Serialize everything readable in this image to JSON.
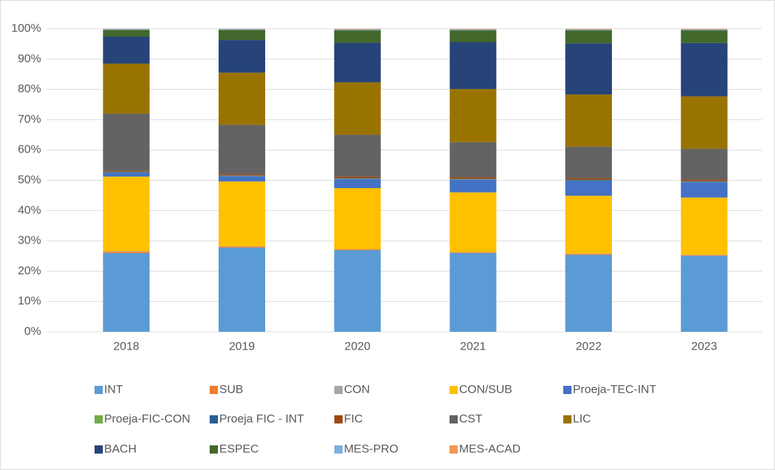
{
  "chart_data": {
    "type": "stacked_bar",
    "categories": [
      "2018",
      "2019",
      "2020",
      "2021",
      "2022",
      "2023"
    ],
    "ylim": [
      0,
      100
    ],
    "yticks": [
      {
        "value": 0,
        "label": "0%"
      },
      {
        "value": 10,
        "label": "10%"
      },
      {
        "value": 20,
        "label": "20%"
      },
      {
        "value": 30,
        "label": "30%"
      },
      {
        "value": 40,
        "label": "40%"
      },
      {
        "value": 50,
        "label": "50%"
      },
      {
        "value": 60,
        "label": "60%"
      },
      {
        "value": 70,
        "label": "70%"
      },
      {
        "value": 80,
        "label": "80%"
      },
      {
        "value": 90,
        "label": "90%"
      },
      {
        "value": 100,
        "label": "100%"
      }
    ],
    "grid": true,
    "legend": "bottom",
    "series": [
      {
        "name": "INT",
        "color": "#5b9bd5",
        "values": [
          26.0,
          27.8,
          26.9,
          26.0,
          25.4,
          25.1
        ]
      },
      {
        "name": "SUB",
        "color": "#ed7d31",
        "values": [
          0.5,
          0.3,
          0.3,
          0.2,
          0.3,
          0.2
        ]
      },
      {
        "name": "CON",
        "color": "#a5a5a5",
        "values": [
          0.1,
          0.1,
          0.1,
          0.1,
          0.1,
          0.1
        ]
      },
      {
        "name": "CON/SUB",
        "color": "#ffc000",
        "values": [
          24.6,
          21.4,
          20.1,
          19.7,
          19.1,
          18.9
        ]
      },
      {
        "name": "Proeja-TEC-INT",
        "color": "#4472c4",
        "values": [
          1.4,
          1.8,
          3.0,
          4.2,
          5.0,
          5.1
        ]
      },
      {
        "name": "Proeja-FIC-CON",
        "color": "#70ad47",
        "values": [
          0.1,
          0.1,
          0.1,
          0.1,
          0.1,
          0.1
        ]
      },
      {
        "name": "Proeja FIC - INT",
        "color": "#255e91",
        "values": [
          0.1,
          0.1,
          0.2,
          0.2,
          0.2,
          0.2
        ]
      },
      {
        "name": "FIC",
        "color": "#9e480e",
        "values": [
          0.3,
          0.4,
          0.5,
          0.5,
          0.5,
          0.5
        ]
      },
      {
        "name": "CST",
        "color": "#636363",
        "values": [
          18.9,
          16.3,
          13.8,
          11.6,
          10.4,
          10.2
        ]
      },
      {
        "name": "LIC",
        "color": "#997300",
        "values": [
          16.5,
          17.2,
          17.3,
          17.5,
          17.2,
          17.3
        ]
      },
      {
        "name": "BACH",
        "color": "#264478",
        "values": [
          8.9,
          10.8,
          13.1,
          15.5,
          16.9,
          17.6
        ]
      },
      {
        "name": "ESPEC",
        "color": "#43682b",
        "values": [
          2.2,
          3.3,
          4.1,
          3.9,
          4.3,
          4.2
        ]
      },
      {
        "name": "MES-PRO",
        "color": "#7cafdd",
        "values": [
          0.3,
          0.3,
          0.3,
          0.3,
          0.3,
          0.3
        ]
      },
      {
        "name": "MES-ACAD",
        "color": "#f1975a",
        "values": [
          0.1,
          0.1,
          0.2,
          0.2,
          0.2,
          0.2
        ]
      }
    ]
  }
}
